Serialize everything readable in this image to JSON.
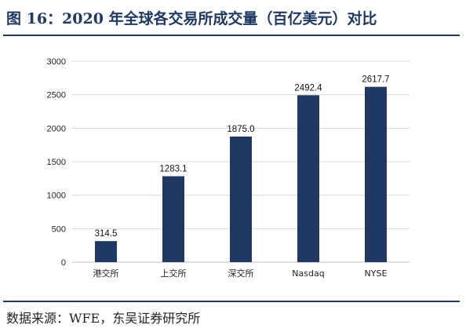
{
  "figure": {
    "title": "图 16：2020 年全球各交易所成交量（百亿美元）对比",
    "source": "数据来源：WFE，东吴证券研究所"
  },
  "colors": {
    "accent": "#1f3864",
    "bar": "#1f3864",
    "grid": "#d9d9d9",
    "axis": "#bfbfbf"
  },
  "chart_data": {
    "type": "bar",
    "categories": [
      "港交所",
      "上交所",
      "深交所",
      "Nasdaq",
      "NYSE"
    ],
    "values": [
      314.5,
      1283.1,
      1875.0,
      2492.4,
      2617.7
    ],
    "value_labels": [
      "314.5",
      "1283.1",
      "1875.0",
      "2492.4",
      "2617.7"
    ],
    "yticks": [
      0,
      500,
      1000,
      1500,
      2000,
      2500,
      3000
    ],
    "ylim": [
      0,
      3000
    ],
    "grid": true,
    "legend": "none"
  }
}
